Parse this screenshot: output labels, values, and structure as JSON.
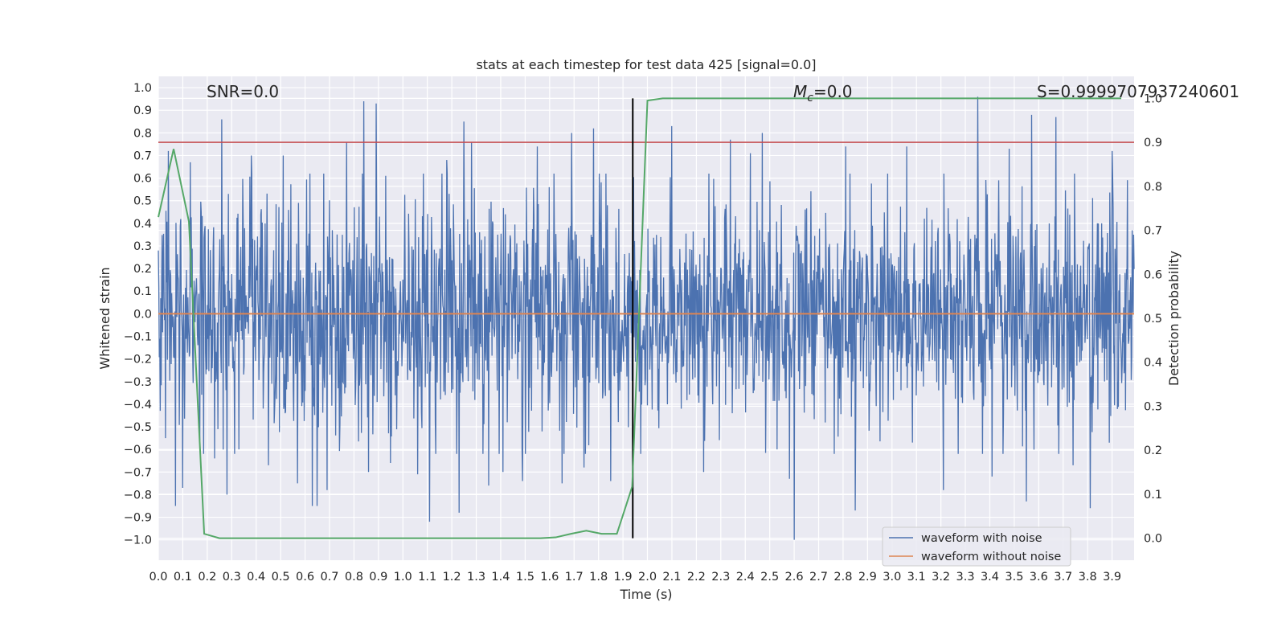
{
  "chart_data": {
    "type": "line",
    "title": "stats at each timestep for test data 425 [signal=0.0]",
    "xlabel": "Time (s)",
    "ylabel": "Whitened strain",
    "y2label": "Detection probability",
    "xlim": [
      0.0,
      3.99
    ],
    "ylim": [
      -1.09,
      1.05
    ],
    "y2lim": [
      -0.05,
      1.05
    ],
    "xticks": [
      0.0,
      0.1,
      0.2,
      0.3,
      0.4,
      0.5,
      0.6,
      0.7,
      0.8,
      0.9,
      1.0,
      1.1,
      1.2,
      1.3,
      1.4,
      1.5,
      1.6,
      1.7,
      1.8,
      1.9,
      2.0,
      2.1,
      2.2,
      2.3,
      2.4,
      2.5,
      2.6,
      2.7,
      2.8,
      2.9,
      3.0,
      3.1,
      3.2,
      3.3,
      3.4,
      3.5,
      3.6,
      3.7,
      3.8,
      3.9
    ],
    "yticks": [
      -1.0,
      -0.9,
      -0.8,
      -0.7,
      -0.6,
      -0.5,
      -0.4,
      -0.3,
      -0.2,
      -0.1,
      0.0,
      0.1,
      0.2,
      0.3,
      0.4,
      0.5,
      0.6,
      0.7,
      0.8,
      0.9,
      1.0
    ],
    "y2ticks": [
      0.0,
      0.1,
      0.2,
      0.3,
      0.4,
      0.5,
      0.6,
      0.7,
      0.8,
      0.9,
      1.0
    ],
    "grid": true,
    "legend_placement": "lower-right",
    "annotations": {
      "snr": "SNR=0.0",
      "mc_symbol": "M",
      "mc_sub": "c",
      "mc_value": "=0.0",
      "s": "S=0.9999707937240601"
    },
    "series": [
      {
        "name": "waveform with noise",
        "color": "#4c72b0",
        "kind": "noise",
        "x_range": [
          0.0,
          3.99
        ],
        "count": 2048,
        "typical_amplitude": 0.45,
        "peaks": [
          [
            0.03,
            -0.55
          ],
          [
            0.04,
            0.72
          ],
          [
            0.07,
            -0.85
          ],
          [
            0.1,
            -0.77
          ],
          [
            0.13,
            0.67
          ],
          [
            0.17,
            -0.56
          ],
          [
            0.23,
            -0.64
          ],
          [
            0.26,
            0.86
          ],
          [
            0.28,
            -0.8
          ],
          [
            0.33,
            -0.6
          ],
          [
            0.38,
            0.7
          ],
          [
            0.45,
            -0.67
          ],
          [
            0.51,
            0.7
          ],
          [
            0.57,
            -0.75
          ],
          [
            0.63,
            -0.85
          ],
          [
            0.65,
            -0.85
          ],
          [
            0.69,
            -0.78
          ],
          [
            0.77,
            0.76
          ],
          [
            0.84,
            0.94
          ],
          [
            0.86,
            -0.7
          ],
          [
            0.89,
            0.93
          ],
          [
            0.95,
            -0.66
          ],
          [
            1.06,
            -0.71
          ],
          [
            1.11,
            -0.92
          ],
          [
            1.18,
            0.68
          ],
          [
            1.23,
            -0.88
          ],
          [
            1.25,
            0.85
          ],
          [
            1.28,
            0.76
          ],
          [
            1.35,
            -0.76
          ],
          [
            1.41,
            -0.7
          ],
          [
            1.49,
            -0.74
          ],
          [
            1.55,
            0.74
          ],
          [
            1.65,
            -0.75
          ],
          [
            1.69,
            0.8
          ],
          [
            1.74,
            -0.68
          ],
          [
            1.78,
            0.82
          ],
          [
            1.85,
            -0.74
          ],
          [
            2.1,
            0.83
          ],
          [
            2.23,
            -0.7
          ],
          [
            2.34,
            0.77
          ],
          [
            2.42,
            0.71
          ],
          [
            2.47,
            0.8
          ],
          [
            2.53,
            -0.6
          ],
          [
            2.58,
            -0.73
          ],
          [
            2.6,
            -1.0
          ],
          [
            2.81,
            0.74
          ],
          [
            2.85,
            -0.87
          ],
          [
            3.06,
            0.74
          ],
          [
            3.21,
            -0.78
          ],
          [
            3.35,
            0.96
          ],
          [
            3.41,
            -0.72
          ],
          [
            3.48,
            0.73
          ],
          [
            3.55,
            -0.83
          ],
          [
            3.57,
            0.88
          ],
          [
            3.67,
            0.87
          ],
          [
            3.74,
            -0.67
          ],
          [
            3.81,
            -0.86
          ],
          [
            3.9,
            0.72
          ]
        ]
      },
      {
        "name": "waveform without noise",
        "color": "#dd8452",
        "kind": "line",
        "x": [
          0.0,
          3.99
        ],
        "y": [
          0.0,
          0.0
        ]
      },
      {
        "color": "#55a868",
        "kind": "line",
        "axis": "right",
        "x": [
          0.0,
          0.0625,
          0.125,
          0.1875,
          0.25,
          0.3125,
          0.375,
          0.4375,
          0.5,
          0.5625,
          0.625,
          0.6875,
          0.75,
          0.8125,
          0.875,
          0.9375,
          1.0,
          1.0625,
          1.125,
          1.1875,
          1.25,
          1.3125,
          1.375,
          1.4375,
          1.5,
          1.5625,
          1.625,
          1.6875,
          1.75,
          1.8125,
          1.875,
          1.9375,
          2.0,
          2.0625,
          2.125,
          2.1875,
          2.25,
          2.3125,
          2.375,
          2.4375,
          2.5,
          2.5625,
          2.625,
          2.6875,
          2.75,
          2.8125,
          2.875,
          2.9375,
          3.0,
          3.0625,
          3.125,
          3.1875,
          3.25,
          3.3125,
          3.375,
          3.4375,
          3.5,
          3.5625,
          3.625,
          3.6875,
          3.75,
          3.8125,
          3.875,
          3.9375
        ],
        "y": [
          0.73,
          0.885,
          0.72,
          0.01,
          0.0,
          0.0,
          0.0,
          0.0,
          0.0,
          0.0,
          0.0,
          0.0,
          0.0,
          0.0,
          0.0,
          0.0,
          0.0,
          0.0,
          0.0,
          0.0,
          0.0,
          0.0,
          0.0,
          0.0,
          0.0,
          0.0,
          0.002,
          0.01,
          0.017,
          0.01,
          0.01,
          0.117,
          0.995,
          1.0,
          1.0,
          1.0,
          1.0,
          1.0,
          1.0,
          1.0,
          1.0,
          1.0,
          1.0,
          1.0,
          1.0,
          1.0,
          1.0,
          1.0,
          1.0,
          1.0,
          1.0,
          1.0,
          1.0,
          1.0,
          1.0,
          1.0,
          1.0,
          1.0,
          1.0,
          1.0,
          1.0,
          1.0,
          1.0,
          1.0
        ]
      }
    ],
    "reference_lines": [
      {
        "orientation": "horizontal",
        "axis": "right",
        "value": 0.9,
        "color": "#c44e52"
      },
      {
        "orientation": "vertical",
        "axis": "x",
        "value": 1.94,
        "y2_range": [
          0.0,
          1.0
        ],
        "color": "#000000"
      }
    ]
  }
}
